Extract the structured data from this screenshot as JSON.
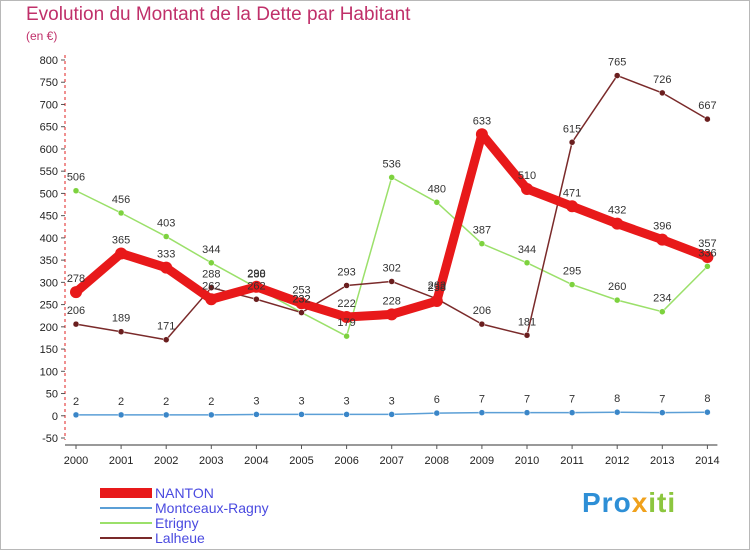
{
  "title": "Evolution du Montant de la Dette par Habitant",
  "subtitle": "(en €)",
  "logo_text": "Proxiti",
  "chart_data": {
    "type": "line",
    "title": "Evolution du Montant de la Dette par Habitant",
    "ylabel": "(en €)",
    "xlabel": "",
    "ylim": [
      -50,
      800
    ],
    "yticks": [
      -50,
      0,
      50,
      100,
      150,
      200,
      250,
      300,
      350,
      400,
      450,
      500,
      550,
      600,
      650,
      700,
      750,
      800
    ],
    "grid": false,
    "legend_position": "bottom-left",
    "x": [
      "2000",
      "2001",
      "2002",
      "2003",
      "2004",
      "2005",
      "2006",
      "2007",
      "2008",
      "2009",
      "2010",
      "2011",
      "2012",
      "2013",
      "2014"
    ],
    "series": [
      {
        "name": "NANTON",
        "color": "#e8191a",
        "values": [
          278,
          365,
          333,
          262,
          290,
          253,
          222,
          228,
          258,
          633,
          510,
          471,
          432,
          396,
          357
        ]
      },
      {
        "name": "Montceaux-Ragny",
        "color": "#5b9fd6",
        "values": [
          2,
          2,
          2,
          2,
          3,
          3,
          3,
          3,
          6,
          7,
          7,
          7,
          8,
          7,
          8
        ]
      },
      {
        "name": "Etrigny",
        "color": "#9be06a",
        "values": [
          506,
          456,
          403,
          344,
          288,
          232,
          179,
          536,
          480,
          387,
          344,
          295,
          260,
          234,
          336
        ]
      },
      {
        "name": "Lalheue",
        "color": "#7a2a2a",
        "values": [
          206,
          189,
          171,
          288,
          262,
          232,
          293,
          302,
          263,
          206,
          181,
          615,
          765,
          726,
          667
        ]
      }
    ]
  }
}
